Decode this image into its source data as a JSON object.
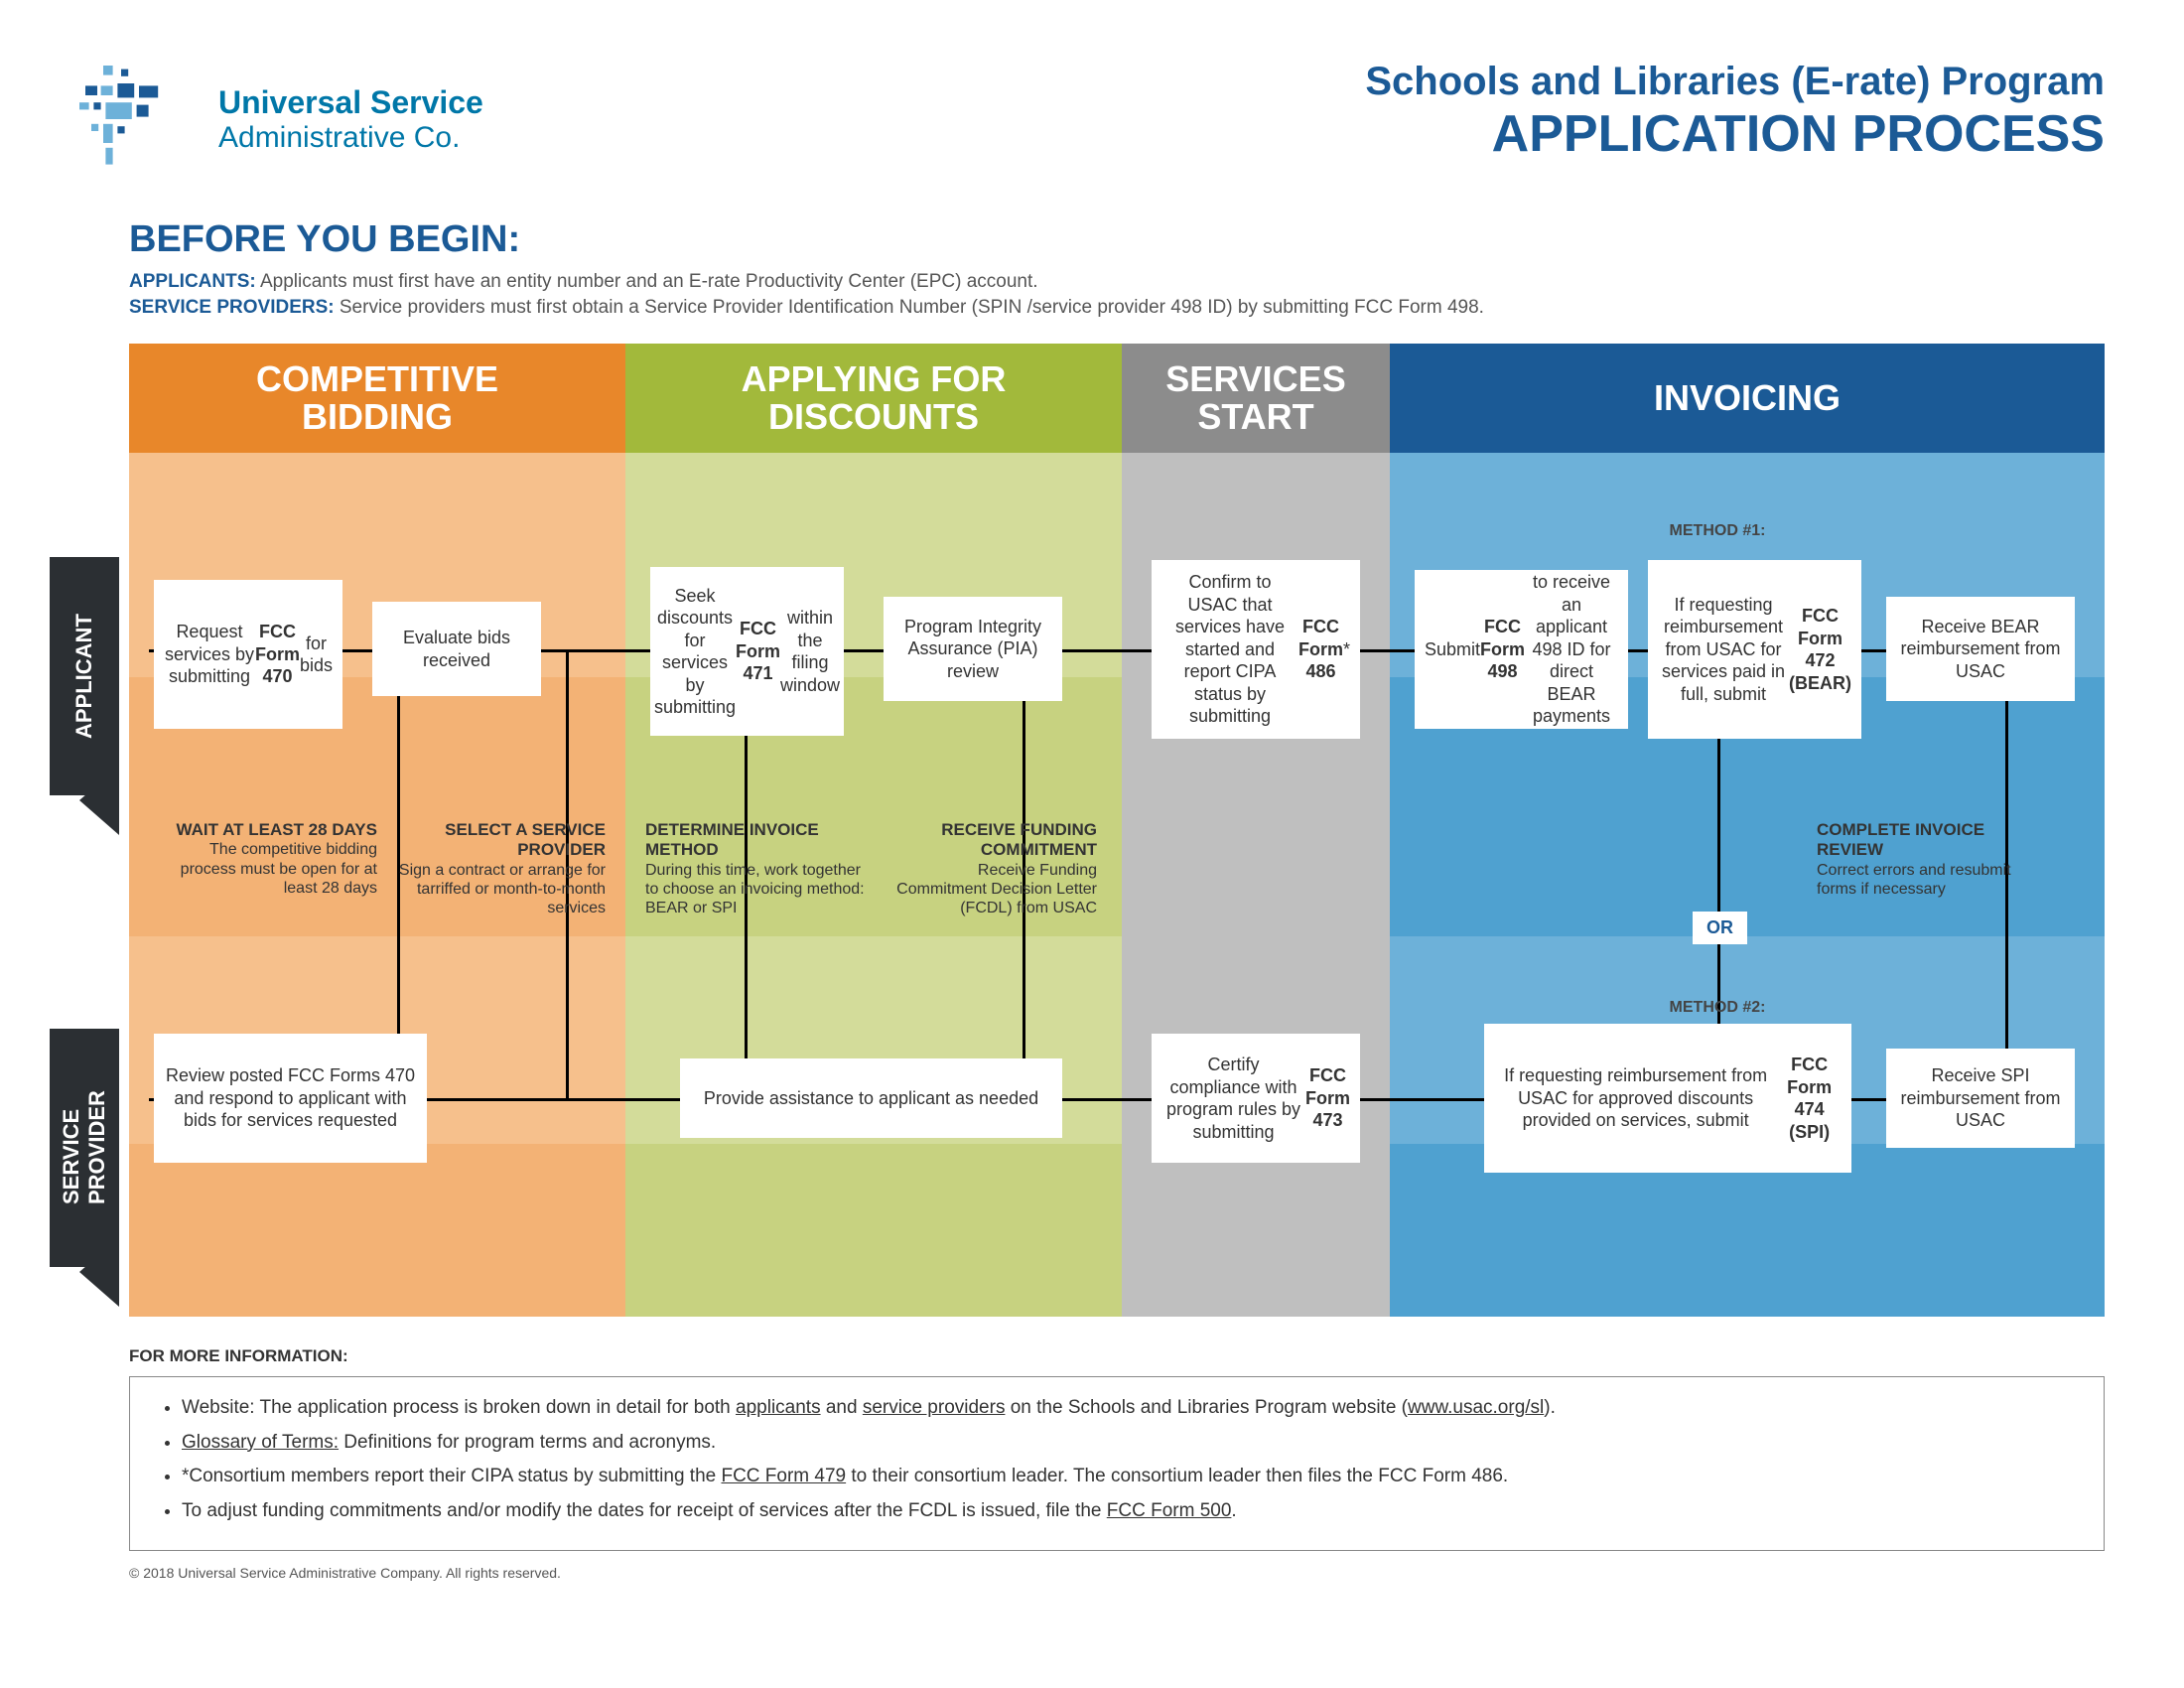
{
  "colors": {
    "brand_blue": "#1b5a96",
    "logo_blue": "#0077a8",
    "phase1": "#e8872a",
    "phase2": "#a2b93b",
    "phase3": "#8c8c8c",
    "phase4": "#1b5a96",
    "bg1_light": "#f6c08c",
    "bg1_dark": "#f3b275",
    "bg2_light": "#d3dc9a",
    "bg2_dark": "#c7d280",
    "bg3": "#bfbfbf",
    "bg4_light": "#6db1d9",
    "bg4_dark": "#4fa1d0",
    "swimlane": "#2b2f33"
  },
  "logo": {
    "line1": "Universal Service",
    "line2": "Administrative Co."
  },
  "title": {
    "line1": "Schools and Libraries (E-rate) Program",
    "line2": "APPLICATION PROCESS"
  },
  "before": {
    "heading": "BEFORE YOU BEGIN:",
    "applicants_label": "APPLICANTS:",
    "applicants_text": " Applicants must first have an entity number and an E-rate Productivity Center (EPC) account.",
    "providers_label": "SERVICE PROVIDERS:",
    "providers_text": " Service providers must first obtain a Service Provider Identification Number (SPIN /service provider 498 ID) by submitting FCC Form 498."
  },
  "phases": {
    "p1": "COMPETITIVE\nBIDDING",
    "p2": "APPLYING FOR\nDISCOUNTS",
    "p3": "SERVICES\nSTART",
    "p4": "INVOICING"
  },
  "swimlanes": {
    "applicant": "APPLICANT",
    "provider": "SERVICE\nPROVIDER"
  },
  "boxes": {
    "a1": "Request services by submitting <b>FCC Form 470</b> for bids",
    "a2": "Evaluate bids received",
    "a3": "Seek discounts for services by submitting <b>FCC Form 471</b> within the filing window",
    "a4": "Program Integrity Assurance (PIA) review",
    "a5": "Confirm to USAC that services have started and report CIPA status by submitting <b>FCC Form 486</b>*",
    "a6": "Submit <b>FCC Form 498</b> to receive an applicant 498 ID for direct BEAR payments",
    "a7": "If requesting reimbursement from USAC for services paid in full, submit <b>FCC Form 472 (BEAR)</b>",
    "a8": "Receive BEAR reimbursement from USAC",
    "p1": "Review posted FCC Forms 470 and respond to applicant with bids for services requested",
    "p2": "Provide assistance to applicant as needed",
    "p3": "Certify compliance with program rules by submitting <b>FCC Form 473</b>",
    "p4": "If requesting reimbursement from USAC for approved discounts provided on services, submit <b>FCC Form 474 (SPI)</b>",
    "p5": "Receive SPI reimbursement from USAC"
  },
  "notes": {
    "n1t": "WAIT AT LEAST 28 DAYS",
    "n1b": "The competitive bidding process must be open for at least 28 days",
    "n2t": "SELECT A SERVICE PROVIDER",
    "n2b": "Sign a contract or arrange for tarriffed or month-to-month services",
    "n3t": "DETERMINE INVOICE METHOD",
    "n3b": "During this time, work together to choose an invoicing method: BEAR or SPI",
    "n4t": "RECEIVE FUNDING COMMITMENT",
    "n4b": "Receive Funding Commitment Decision Letter (FCDL) from USAC",
    "n5t": "COMPLETE INVOICE REVIEW",
    "n5b": "Correct errors and resubmit forms if necessary"
  },
  "method1": "METHOD #1:",
  "method2": "METHOD #2:",
  "or": "OR",
  "footer": {
    "fmi": "FOR MORE INFORMATION:",
    "b1": "Website: The application process is broken down in detail for both <span class='u'>applicants</span> and <span class='u'>service providers</span> on the Schools and Libraries Program website (<span class='u'>www.usac.org/sl</span>).",
    "b2": "<span class='u'>Glossary of Terms:</span> Definitions for program terms and acronyms.",
    "b3": "*Consortium members report their CIPA status by submitting the <span class='u'>FCC Form 479</span> to their consortium leader. The consortium leader then files the FCC Form 486.",
    "b4": "To adjust funding commitments and/or modify the dates for receipt of services after the FCDL is issued, file the <span class='u'>FCC Form 500</span>.",
    "copyright": "© 2018 Universal Service Administrative Company. All rights reserved."
  }
}
